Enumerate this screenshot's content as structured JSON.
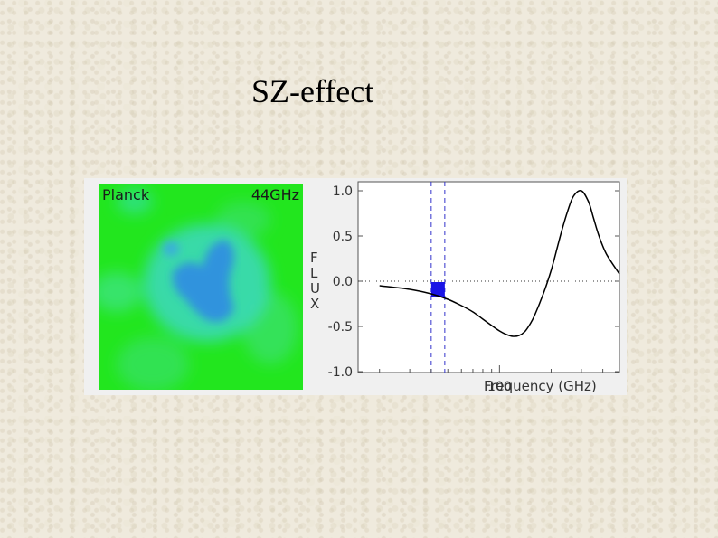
{
  "slide": {
    "title": "SZ-effect"
  },
  "map": {
    "instrument": "Planck",
    "frequency_label": "44GHz"
  },
  "chart_data": {
    "type": "line",
    "title": "",
    "xlabel": "Frequency (GHz)",
    "ylabel": "FLUX",
    "ylabel_letters": [
      "F",
      "L",
      "U",
      "X"
    ],
    "x_tick_labels": [
      "100"
    ],
    "y_tick_labels": [
      "1.0",
      "0.5",
      "0.0",
      "-0.5",
      "-1.0"
    ],
    "ylim": [
      -1.0,
      1.0
    ],
    "x_scale": "log",
    "series": [
      {
        "x": [
          20,
          30,
          40,
          50,
          60,
          70,
          80,
          90,
          100,
          110,
          120,
          130,
          140,
          150,
          160,
          180,
          200,
          217,
          230,
          250,
          270,
          300,
          330,
          353,
          380,
          420,
          500
        ],
        "values": [
          -0.05,
          -0.09,
          -0.14,
          -0.2,
          -0.27,
          -0.34,
          -0.42,
          -0.49,
          -0.55,
          -0.59,
          -0.61,
          -0.6,
          -0.56,
          -0.48,
          -0.38,
          -0.14,
          0.12,
          0.37,
          0.55,
          0.78,
          0.94,
          1.0,
          0.88,
          0.7,
          0.5,
          0.3,
          0.08
        ]
      }
    ],
    "band": {
      "x_start": 40,
      "x_end": 48,
      "y_bottom": -0.17,
      "y_top": -0.01,
      "color": "#1a14e6"
    },
    "dashed_lines_x": [
      40,
      48
    ],
    "zero_line": true,
    "colors": {
      "curve": "#000000",
      "band": "#1a14e6",
      "dashed": "#3333cc",
      "map_background": "#22e61e",
      "map_cold": "#2f8fe0"
    }
  }
}
